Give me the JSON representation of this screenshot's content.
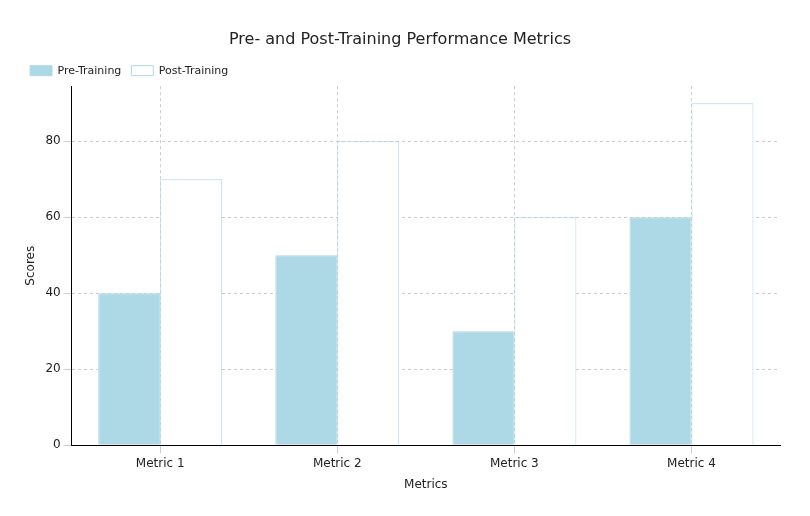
{
  "chart_data": {
    "type": "bar",
    "title": "Pre- and Post-Training Performance Metrics",
    "x_label": "Metrics",
    "y_label": "Scores",
    "categories": [
      "Metric 1",
      "Metric 2",
      "Metric 3",
      "Metric 4"
    ],
    "series": [
      {
        "name": "Pre-Training",
        "color": "#add8e6",
        "values": [
          40,
          50,
          30,
          60
        ]
      },
      {
        "name": "Post-Training",
        "color": "#ffffff",
        "values": [
          70,
          80,
          60,
          90
        ]
      }
    ],
    "ylim": [
      0,
      94.5
    ],
    "yticks": [
      0,
      20,
      40,
      60,
      80
    ],
    "grid": true,
    "legend": "upper left"
  }
}
